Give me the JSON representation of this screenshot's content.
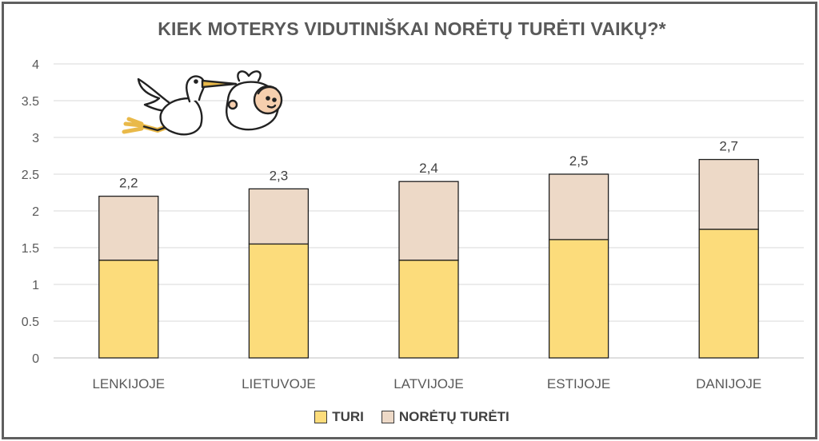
{
  "chart_data": {
    "type": "bar",
    "stacked": true,
    "title": "KIEK MOTERYS VIDUTINIŠKAI NORĖTŲ TURĖTI VAIKŲ?*",
    "categories": [
      "LENKIJOJE",
      "LIETUVOJE",
      "LATVIJOJE",
      "ESTIJOJE",
      "DANIJOJE"
    ],
    "series": [
      {
        "name": "TURI",
        "values": [
          1.33,
          1.55,
          1.33,
          1.61,
          1.75
        ],
        "color": "#FCDC7B"
      },
      {
        "name": "NORĖTŲ TURĖTI",
        "values": [
          0.87,
          0.75,
          1.07,
          0.89,
          0.95
        ],
        "color": "#EDD9C7"
      }
    ],
    "totals_labels": [
      "2,2",
      "2,3",
      "2,4",
      "2,5",
      "2,7"
    ],
    "y_ticks": [
      "0",
      "0.5",
      "1",
      "1.5",
      "2",
      "2.5",
      "3",
      "3.5",
      "4"
    ],
    "ylim": [
      0,
      4
    ],
    "grid": true,
    "legend_position": "bottom",
    "xlabel": "",
    "ylabel": ""
  },
  "illustration": "stork-carrying-baby"
}
